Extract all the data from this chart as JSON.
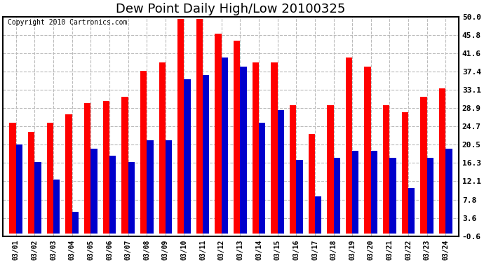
{
  "title": "Dew Point Daily High/Low 20100325",
  "copyright": "Copyright 2010 Cartronics.com",
  "dates": [
    "03/01",
    "03/02",
    "03/03",
    "03/04",
    "03/05",
    "03/06",
    "03/07",
    "03/08",
    "03/09",
    "03/10",
    "03/11",
    "03/12",
    "03/13",
    "03/14",
    "03/15",
    "03/16",
    "03/17",
    "03/18",
    "03/19",
    "03/20",
    "03/21",
    "03/22",
    "03/23",
    "03/24"
  ],
  "highs": [
    25.5,
    23.5,
    25.5,
    27.5,
    30.0,
    30.5,
    31.5,
    37.5,
    39.5,
    49.5,
    49.5,
    46.0,
    44.5,
    39.5,
    39.5,
    29.5,
    23.0,
    29.5,
    40.5,
    38.5,
    29.5,
    28.0,
    31.5,
    33.5
  ],
  "lows": [
    20.5,
    16.5,
    12.5,
    5.0,
    19.5,
    18.0,
    16.5,
    21.5,
    21.5,
    35.5,
    36.5,
    40.5,
    38.5,
    25.5,
    28.5,
    17.0,
    8.5,
    17.5,
    19.0,
    19.0,
    17.5,
    10.5,
    17.5,
    19.5
  ],
  "high_color": "#ff0000",
  "low_color": "#0000cc",
  "bg_color": "#ffffff",
  "plot_bg": "#ffffff",
  "grid_color": "#bbbbbb",
  "title_fontsize": 13,
  "copyright_fontsize": 7,
  "ylim": [
    -0.6,
    50.0
  ],
  "yticks": [
    -0.6,
    3.6,
    7.8,
    12.1,
    16.3,
    20.5,
    24.7,
    28.9,
    33.1,
    37.4,
    41.6,
    45.8,
    50.0
  ]
}
